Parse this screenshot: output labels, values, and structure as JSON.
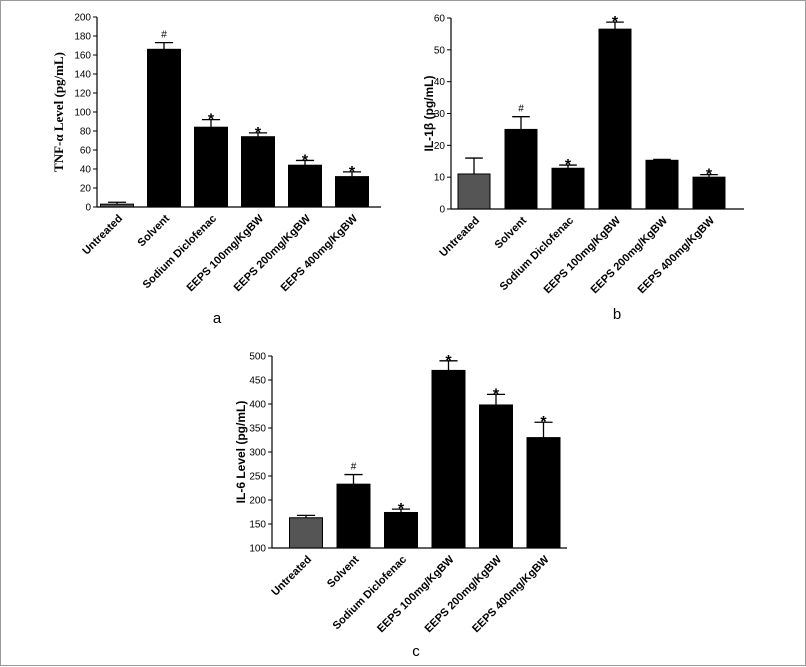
{
  "chart_data": [
    {
      "type": "bar",
      "panel_label": "a",
      "ylabel": "TNF-α Level (pg/mL)",
      "ylim": [
        0,
        200
      ],
      "yticks": [
        0,
        20,
        40,
        60,
        80,
        100,
        120,
        140,
        160,
        180,
        200
      ],
      "categories": [
        "Untreated",
        "Solvent",
        "Sodium Diclofenac",
        "EEPS 100mg/KgBW",
        "EEPS 200mg/KgBW",
        "EEPS 400mg/KgBW"
      ],
      "values": [
        3,
        166,
        84,
        74,
        44,
        32
      ],
      "errors": [
        2,
        7,
        8,
        4,
        5,
        5
      ],
      "markers": [
        "",
        "#",
        "*",
        "*",
        "*",
        "*"
      ],
      "bar_colors": [
        "#555555",
        "#000000",
        "#000000",
        "#000000",
        "#000000",
        "#000000"
      ]
    },
    {
      "type": "bar",
      "panel_label": "b",
      "ylabel": "IL-1β (pg/mL)",
      "ylim": [
        0,
        60
      ],
      "yticks": [
        0,
        10,
        20,
        30,
        40,
        50,
        60
      ],
      "categories": [
        "Untreated",
        "Solvent",
        "Sodium Diclofenac",
        "EEPS 100mg/KgBW",
        "EEPS 200mg/KgBW",
        "EEPS 400mg/KgBW"
      ],
      "values": [
        11,
        25,
        12.8,
        56.5,
        15.3,
        10
      ],
      "errors": [
        5,
        4,
        1,
        2.2,
        0.3,
        0.8
      ],
      "markers": [
        "",
        "#",
        "*",
        "*",
        "",
        "*"
      ],
      "bar_colors": [
        "#555555",
        "#000000",
        "#000000",
        "#000000",
        "#000000",
        "#000000"
      ]
    },
    {
      "type": "bar",
      "panel_label": "c",
      "ylabel": "IL-6 Level (pg/mL)",
      "ylim": [
        100,
        500
      ],
      "yticks": [
        100,
        150,
        200,
        250,
        300,
        350,
        400,
        450,
        500
      ],
      "categories": [
        "Untreated",
        "Solvent",
        "Sodium Diclofenac",
        "EEPS 100mg/KgBW",
        "EEPS 200mg/KgBW",
        "EEPS 400mg/KgBW"
      ],
      "values": [
        163,
        233,
        174,
        470,
        398,
        330
      ],
      "errors": [
        5,
        20,
        7,
        20,
        22,
        32
      ],
      "markers": [
        "",
        "#",
        "*",
        "*",
        "*",
        "*"
      ],
      "bar_colors": [
        "#555555",
        "#000000",
        "#000000",
        "#000000",
        "#000000",
        "#000000"
      ]
    }
  ]
}
